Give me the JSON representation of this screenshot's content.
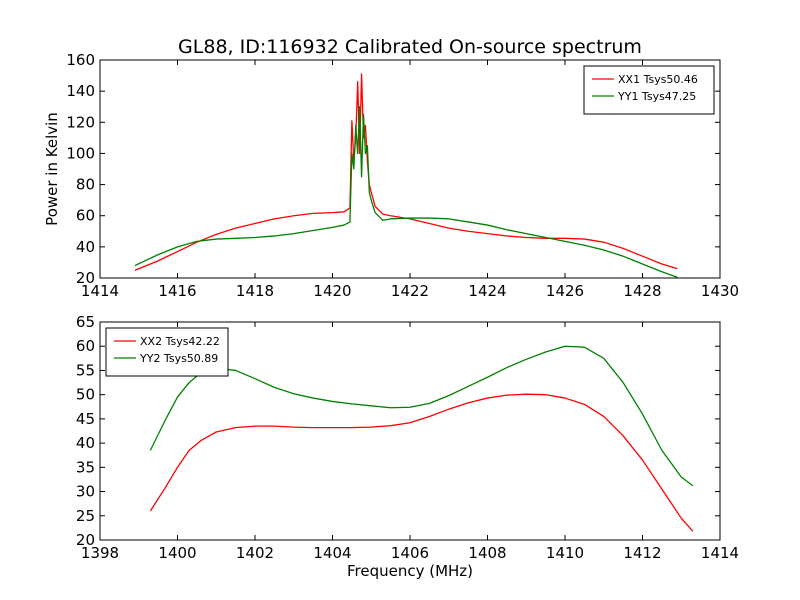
{
  "figure": {
    "title": "GL88, ID:116932 Calibrated On-source spectrum"
  },
  "chart_data": [
    {
      "type": "line",
      "title": "GL88, ID:116932 Calibrated On-source spectrum",
      "xlabel": "",
      "ylabel": "Power in Kelvin",
      "xlim": [
        1414,
        1430
      ],
      "ylim": [
        20,
        160
      ],
      "xticks": [
        1414,
        1416,
        1418,
        1420,
        1422,
        1424,
        1426,
        1428,
        1430
      ],
      "yticks": [
        20,
        40,
        60,
        80,
        100,
        120,
        140,
        160
      ],
      "grid": false,
      "legend_position": "top-right",
      "series": [
        {
          "name": "XX1 Tsys50.46",
          "color": "#ff0000",
          "x": [
            1414.9,
            1415.5,
            1416.0,
            1416.5,
            1417.0,
            1417.5,
            1418.0,
            1418.5,
            1419.0,
            1419.5,
            1420.0,
            1420.3,
            1420.45,
            1420.5,
            1420.55,
            1420.6,
            1420.65,
            1420.7,
            1420.75,
            1420.8,
            1420.85,
            1420.9,
            1420.95,
            1421.0,
            1421.1,
            1421.3,
            1421.5,
            1422.0,
            1422.5,
            1423.0,
            1423.5,
            1424.0,
            1424.5,
            1425.0,
            1425.5,
            1426.0,
            1426.5,
            1427.0,
            1427.5,
            1428.0,
            1428.5,
            1428.9
          ],
          "y": [
            25,
            31,
            37,
            43,
            48,
            52,
            55,
            58,
            60,
            61.5,
            62,
            62.5,
            65,
            121,
            95,
            110,
            146,
            100,
            151,
            110,
            118,
            95,
            80,
            75,
            66,
            61,
            60,
            58,
            55,
            52,
            50,
            48.5,
            47,
            46,
            45.5,
            45.5,
            45,
            43,
            39,
            34,
            29,
            26
          ]
        },
        {
          "name": "YY1 Tsys47.25",
          "color": "#008000",
          "x": [
            1414.9,
            1415.5,
            1416.0,
            1416.5,
            1417.0,
            1417.5,
            1418.0,
            1418.5,
            1419.0,
            1419.5,
            1420.0,
            1420.3,
            1420.45,
            1420.5,
            1420.55,
            1420.6,
            1420.65,
            1420.7,
            1420.75,
            1420.8,
            1420.85,
            1420.9,
            1420.95,
            1421.0,
            1421.1,
            1421.3,
            1421.5,
            1422.0,
            1422.5,
            1423.0,
            1423.5,
            1424.0,
            1424.5,
            1425.0,
            1425.5,
            1426.0,
            1426.5,
            1427.0,
            1427.5,
            1428.0,
            1428.5,
            1428.9
          ],
          "y": [
            28,
            35,
            40,
            43.5,
            45,
            45.5,
            46,
            47,
            48.5,
            50.5,
            52.5,
            54,
            56,
            100,
            90,
            118,
            100,
            130,
            85,
            125,
            100,
            105,
            75,
            70,
            62,
            57,
            58,
            58.5,
            58.5,
            58,
            56,
            54,
            51,
            48.5,
            46,
            43.5,
            41,
            38,
            34,
            29,
            24,
            20.5
          ]
        }
      ]
    },
    {
      "type": "line",
      "title": "",
      "xlabel": "Frequency (MHz)",
      "ylabel": "",
      "xlim": [
        1398,
        1414
      ],
      "ylim": [
        20,
        65
      ],
      "xticks": [
        1398,
        1400,
        1402,
        1404,
        1406,
        1408,
        1410,
        1412,
        1414
      ],
      "yticks": [
        20,
        25,
        30,
        35,
        40,
        45,
        50,
        55,
        60,
        65
      ],
      "grid": false,
      "legend_position": "top-left",
      "series": [
        {
          "name": "XX2 Tsys42.22",
          "color": "#ff0000",
          "x": [
            1399.3,
            1399.7,
            1400.0,
            1400.3,
            1400.6,
            1401.0,
            1401.5,
            1402.0,
            1402.5,
            1403.0,
            1403.5,
            1404.0,
            1404.5,
            1405.0,
            1405.5,
            1406.0,
            1406.5,
            1407.0,
            1407.5,
            1408.0,
            1408.5,
            1409.0,
            1409.5,
            1410.0,
            1410.5,
            1411.0,
            1411.5,
            1412.0,
            1412.5,
            1413.0,
            1413.3
          ],
          "y": [
            26,
            31,
            35,
            38.5,
            40.5,
            42.3,
            43.2,
            43.5,
            43.5,
            43.3,
            43.2,
            43.2,
            43.2,
            43.3,
            43.6,
            44.2,
            45.5,
            47,
            48.3,
            49.3,
            49.9,
            50.1,
            50,
            49.3,
            48,
            45.5,
            41.5,
            36.5,
            30.5,
            24.5,
            21.8
          ]
        },
        {
          "name": "YY2 Tsys50.89",
          "color": "#008000",
          "x": [
            1399.3,
            1399.7,
            1400.0,
            1400.3,
            1400.6,
            1401.0,
            1401.5,
            1402.0,
            1402.5,
            1403.0,
            1403.5,
            1404.0,
            1404.5,
            1405.0,
            1405.5,
            1406.0,
            1406.5,
            1407.0,
            1407.5,
            1408.0,
            1408.5,
            1409.0,
            1409.5,
            1410.0,
            1410.5,
            1411.0,
            1411.5,
            1412.0,
            1412.5,
            1413.0,
            1413.3
          ],
          "y": [
            38.5,
            45,
            49.5,
            52.5,
            54.5,
            55.5,
            55,
            53.3,
            51.5,
            50.2,
            49.3,
            48.6,
            48.1,
            47.7,
            47.3,
            47.4,
            48.2,
            49.8,
            51.7,
            53.6,
            55.6,
            57.3,
            58.8,
            60,
            59.8,
            57.5,
            52.5,
            46,
            38.5,
            33,
            31.2
          ]
        }
      ]
    }
  ]
}
